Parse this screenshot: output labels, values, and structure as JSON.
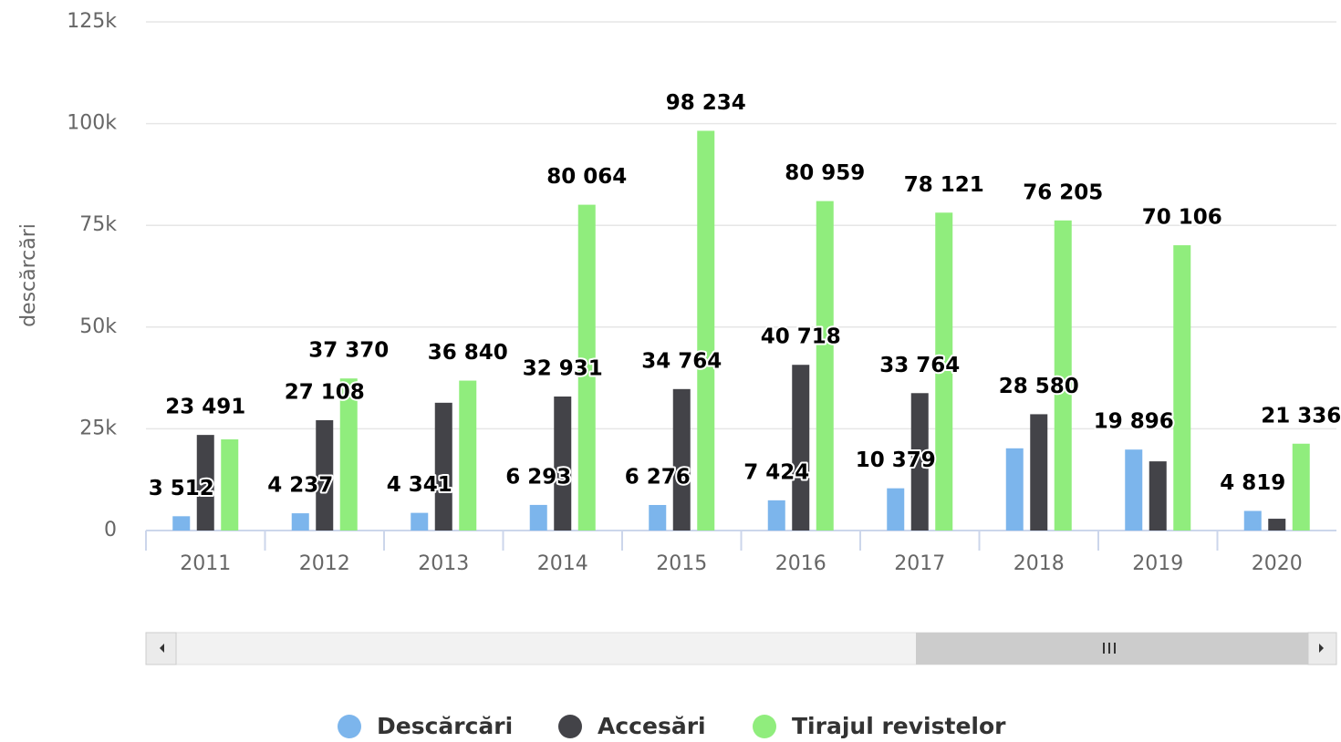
{
  "chart_data": {
    "type": "bar",
    "y_label": "descărcări",
    "categories": [
      "2011",
      "2012",
      "2013",
      "2014",
      "2015",
      "2016",
      "2017",
      "2018",
      "2019",
      "2020"
    ],
    "series": [
      {
        "name": "Descărcări",
        "color": "#7cb5ec",
        "values": [
          3512,
          4237,
          4341,
          6293,
          6276,
          7424,
          10379,
          20200,
          19896,
          4819
        ],
        "value_labels": [
          "3 512",
          "4 237",
          "4 341",
          "6 293",
          "6 276",
          "7 424",
          "10 379",
          null,
          "19 896",
          "4 819"
        ]
      },
      {
        "name": "Accesări",
        "color": "#434348",
        "values": [
          23491,
          27108,
          31400,
          32931,
          34764,
          40718,
          33764,
          28580,
          17000,
          2900
        ],
        "value_labels": [
          "23 491",
          "27 108",
          null,
          "32 931",
          "34 764",
          "40 718",
          "33 764",
          "28 580",
          null,
          null
        ]
      },
      {
        "name": "Tirajul revistelor",
        "color": "#90ed7d",
        "values": [
          22400,
          37370,
          36840,
          80064,
          98234,
          80959,
          78121,
          76205,
          70106,
          21336
        ],
        "value_labels": [
          null,
          "37 370",
          "36 840",
          "80 064",
          "98 234",
          "80 959",
          "78 121",
          "76 205",
          "70 106",
          "21 336"
        ]
      }
    ],
    "ylim": [
      0,
      125000
    ],
    "yticks": [
      0,
      {
        "value": 25000,
        "label": "25k"
      },
      {
        "value": 50000,
        "label": "50k"
      },
      {
        "value": 75000,
        "label": "75k"
      },
      {
        "value": 100000,
        "label": "100k"
      },
      {
        "value": 125000,
        "label": "125k"
      }
    ],
    "grid": true
  }
}
